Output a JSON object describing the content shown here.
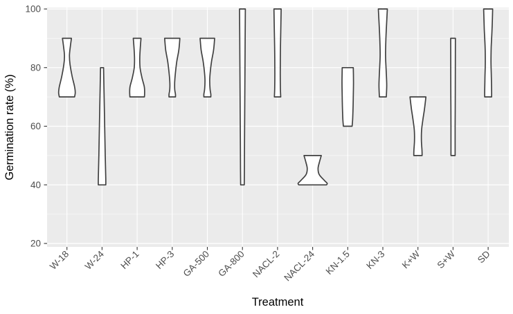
{
  "chart_data": {
    "type": "violin",
    "title": "",
    "xlabel": "Treatment",
    "ylabel": "Germination rate (%)",
    "ylim": [
      20,
      100
    ],
    "y_major_ticks": [
      20,
      40,
      60,
      80,
      100
    ],
    "y_minor_gridlines": [
      30,
      50,
      70,
      90
    ],
    "grid": "on",
    "legend": "none",
    "colors": {
      "panel_bg": "#EBEBEB",
      "gridline": "#FFFFFF",
      "violin_fill": "#FFFFFF",
      "violin_stroke": "#404040",
      "tick_mark": "#333333",
      "tick_label": "#4D4D4D",
      "axis_title": "#000000"
    },
    "categories": [
      {
        "name": "W-18",
        "range_min": 70,
        "range_max": 90,
        "profile": [
          [
            90,
            6.5
          ],
          [
            87,
            4.8
          ],
          [
            84,
            3.6
          ],
          [
            81,
            4.5
          ],
          [
            77,
            7.5
          ],
          [
            73.5,
            11
          ],
          [
            71.5,
            12
          ],
          [
            70,
            11
          ]
        ]
      },
      {
        "name": "W-24",
        "range_min": 40,
        "range_max": 80,
        "profile": [
          [
            80,
            2.2
          ],
          [
            70,
            3.0
          ],
          [
            60,
            3.8
          ],
          [
            50,
            4.6
          ],
          [
            42,
            5.4
          ],
          [
            40,
            5.4
          ]
        ]
      },
      {
        "name": "HP-1",
        "range_min": 70,
        "range_max": 90,
        "profile": [
          [
            90,
            5.6
          ],
          [
            87,
            4.6
          ],
          [
            83.5,
            3.8
          ],
          [
            80,
            4.2
          ],
          [
            76.5,
            7
          ],
          [
            73.5,
            10.3
          ],
          [
            71.5,
            10.8
          ],
          [
            70,
            10.5
          ]
        ]
      },
      {
        "name": "HP-3",
        "range_min": 70,
        "range_max": 90,
        "profile": [
          [
            90,
            11
          ],
          [
            86,
            9.5
          ],
          [
            82,
            6.5
          ],
          [
            78,
            4.5
          ],
          [
            75,
            3.5
          ],
          [
            72.5,
            3.6
          ],
          [
            71,
            4.6
          ],
          [
            70,
            4.7
          ]
        ]
      },
      {
        "name": "GA-500",
        "range_min": 70,
        "range_max": 90,
        "profile": [
          [
            90,
            10.5
          ],
          [
            86,
            9
          ],
          [
            82,
            6
          ],
          [
            78,
            4
          ],
          [
            75.5,
            3.4
          ],
          [
            72.5,
            4
          ],
          [
            71,
            5
          ],
          [
            70,
            5
          ]
        ]
      },
      {
        "name": "GA-800",
        "range_min": 40,
        "range_max": 100,
        "profile": [
          [
            100,
            4.2
          ],
          [
            85,
            3.8
          ],
          [
            70,
            3.4
          ],
          [
            55,
            3
          ],
          [
            45,
            2.8
          ],
          [
            40,
            2.6
          ]
        ]
      },
      {
        "name": "NACL-2",
        "range_min": 70,
        "range_max": 100,
        "profile": [
          [
            100,
            5.2
          ],
          [
            92,
            4.6
          ],
          [
            85,
            4.1
          ],
          [
            78,
            3.9
          ],
          [
            73,
            4.1
          ],
          [
            70,
            4.6
          ]
        ]
      },
      {
        "name": "NACL-24",
        "range_min": 40,
        "range_max": 50,
        "profile": [
          [
            50,
            12.5
          ],
          [
            47.5,
            9.5
          ],
          [
            45.5,
            7.8
          ],
          [
            43.5,
            9.5
          ],
          [
            41.5,
            17
          ],
          [
            40.5,
            21
          ],
          [
            40,
            20
          ]
        ]
      },
      {
        "name": "KN-1.5",
        "range_min": 60,
        "range_max": 80,
        "profile": [
          [
            80,
            8
          ],
          [
            75,
            8.3
          ],
          [
            70,
            8
          ],
          [
            65,
            7.5
          ],
          [
            62,
            7
          ],
          [
            60,
            6.3
          ]
        ]
      },
      {
        "name": "KN-3",
        "range_min": 70,
        "range_max": 100,
        "profile": [
          [
            100,
            6.5
          ],
          [
            94,
            5.2
          ],
          [
            89,
            4.3
          ],
          [
            84,
            3.9
          ],
          [
            79,
            4.8
          ],
          [
            74,
            5.6
          ],
          [
            70,
            5
          ]
        ]
      },
      {
        "name": "K+W",
        "range_min": 50,
        "range_max": 70,
        "profile": [
          [
            70,
            11.5
          ],
          [
            66,
            9.5
          ],
          [
            62,
            7
          ],
          [
            58.5,
            5.2
          ],
          [
            55,
            5
          ],
          [
            52,
            5.8
          ],
          [
            50,
            6
          ]
        ]
      },
      {
        "name": "S+W",
        "range_min": 50,
        "range_max": 90,
        "profile": [
          [
            90,
            3.4
          ],
          [
            80,
            3.3
          ],
          [
            70,
            3.2
          ],
          [
            60,
            3
          ],
          [
            52,
            3
          ],
          [
            50,
            3
          ]
        ]
      },
      {
        "name": "SD",
        "range_min": 70,
        "range_max": 100,
        "profile": [
          [
            100,
            6.5
          ],
          [
            93,
            5.6
          ],
          [
            87,
            4.4
          ],
          [
            82,
            4.1
          ],
          [
            77,
            4.6
          ],
          [
            72,
            5
          ],
          [
            70,
            5
          ]
        ]
      }
    ]
  }
}
